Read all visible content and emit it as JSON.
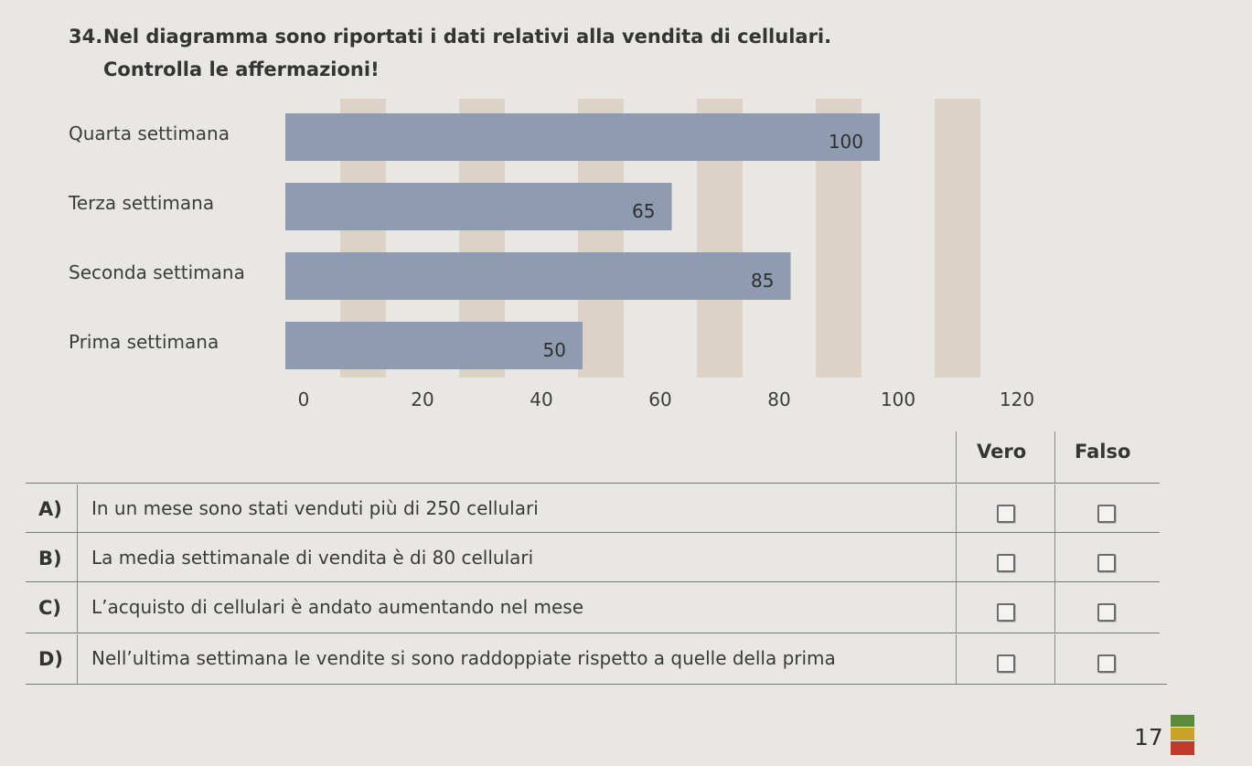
{
  "exercise": {
    "number": "34.",
    "line1": "Nel diagramma sono riportati i dati relativi alla vendita di cellulari.",
    "line2": "Controlla le affermazioni!"
  },
  "chart_data": {
    "type": "bar",
    "orientation": "horizontal",
    "categories": [
      "Quarta settimana",
      "Terza settimana",
      "Seconda settimana",
      "Prima settimana"
    ],
    "values": [
      100,
      65,
      85,
      50
    ],
    "data_labels": [
      "100",
      "65",
      "85",
      "50"
    ],
    "x_ticks": [
      "0",
      "20",
      "40",
      "60",
      "80",
      "100",
      "120"
    ],
    "xlim": [
      0,
      120
    ],
    "grid": "vertical stripes",
    "bar_color": "#8e9bb1",
    "stripe_color": "#dcd2c6"
  },
  "table": {
    "col_vero": "Vero",
    "col_falso": "Falso",
    "rows": [
      {
        "letter": "A)",
        "text": "In un mese sono stati venduti più di 250 cellulari"
      },
      {
        "letter": "B)",
        "text": "La media settimanale di vendita è di 80 cellulari"
      },
      {
        "letter": "C)",
        "text": "L’acquisto di cellulari è andato aumentando nel mese"
      },
      {
        "letter": "D)",
        "text": "Nell’ultima settimana le vendite si sono raddoppiate rispetto a quelle della prima"
      }
    ]
  },
  "footer": {
    "page_number": "17",
    "badge_colors": [
      "#5d8a3a",
      "#c9a227",
      "#c0392b"
    ]
  }
}
